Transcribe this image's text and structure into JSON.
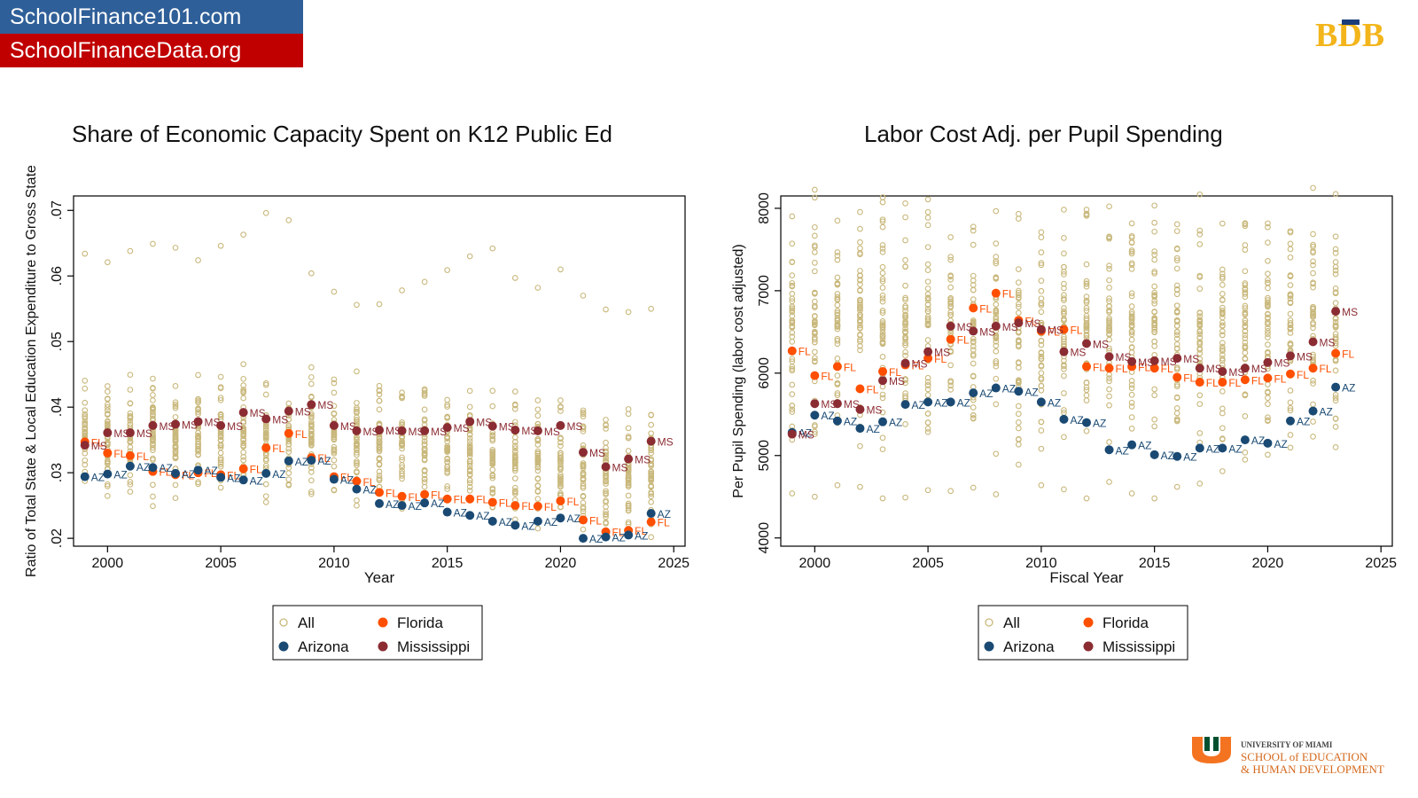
{
  "banner": {
    "line1": "SchoolFinance101.com",
    "line2": "SchoolFinanceData.org",
    "colors": {
      "line1_bg": "#2f5f98",
      "line2_bg": "#c00000"
    }
  },
  "logos": {
    "top_right": "BDB",
    "bottom_right": {
      "university": "UNIVERSITY OF MIAMI",
      "school_line1": "SCHOOL of EDUCATION",
      "school_line2": "& HUMAN DEVELOPMENT"
    }
  },
  "colors": {
    "all": "#c9b87c",
    "florida": "#ff4f00",
    "arizona": "#1a4a73",
    "mississippi": "#8b2c33"
  },
  "chart_data": [
    {
      "type": "scatter",
      "title": "Share of Economic Capacity Spent on K12 Public Ed",
      "xlabel": "Year",
      "ylabel": "Ratio of Total State & Local Education Expenditure to Gross State",
      "xlim": [
        1998.5,
        2025.5
      ],
      "ylim": [
        0.0188,
        0.0722
      ],
      "xticks": [
        2000,
        2005,
        2010,
        2015,
        2020,
        2025
      ],
      "xtick_labels": [
        "2000",
        "2005",
        "2010",
        "2015",
        "2020",
        "2025"
      ],
      "yticks": [
        0.02,
        0.03,
        0.04,
        0.05,
        0.06,
        0.07
      ],
      "ytick_labels": [
        ".02",
        ".03",
        ".04",
        ".05",
        ".06",
        ".07"
      ],
      "series": [
        {
          "name": "Florida",
          "label": "FL",
          "x": [
            1999,
            2000,
            2001,
            2002,
            2003,
            2004,
            2005,
            2006,
            2007,
            2008,
            2009,
            2010,
            2011,
            2012,
            2013,
            2014,
            2015,
            2016,
            2017,
            2018,
            2019,
            2020,
            2021,
            2022,
            2023,
            2024
          ],
          "y": [
            0.0347,
            0.033,
            0.0326,
            0.0302,
            0.0297,
            0.03,
            0.0297,
            0.0306,
            0.0338,
            0.036,
            0.0323,
            0.0294,
            0.0287,
            0.027,
            0.0264,
            0.0267,
            0.026,
            0.026,
            0.0255,
            0.025,
            0.0249,
            0.0257,
            0.0228,
            0.021,
            0.0212,
            0.0225
          ]
        },
        {
          "name": "Arizona",
          "label": "AZ",
          "x": [
            1999,
            2000,
            2001,
            2002,
            2003,
            2004,
            2005,
            2006,
            2007,
            2008,
            2009,
            2010,
            2011,
            2012,
            2013,
            2014,
            2015,
            2016,
            2017,
            2018,
            2019,
            2020,
            2021,
            2022,
            2023,
            2024
          ],
          "y": [
            0.0294,
            0.0298,
            0.031,
            0.0308,
            0.0299,
            0.0304,
            0.0293,
            0.0289,
            0.0299,
            0.0318,
            0.0319,
            0.029,
            0.0275,
            0.0253,
            0.025,
            0.0254,
            0.024,
            0.0235,
            0.0226,
            0.022,
            0.0226,
            0.0231,
            0.02,
            0.0202,
            0.0205,
            0.0238
          ]
        },
        {
          "name": "Mississippi",
          "label": "MS",
          "x": [
            1999,
            2000,
            2001,
            2002,
            2003,
            2004,
            2005,
            2006,
            2007,
            2008,
            2009,
            2010,
            2011,
            2012,
            2013,
            2014,
            2015,
            2016,
            2017,
            2018,
            2019,
            2020,
            2021,
            2022,
            2023,
            2024
          ],
          "y": [
            0.0342,
            0.0361,
            0.0361,
            0.0372,
            0.0374,
            0.0378,
            0.0372,
            0.0392,
            0.0382,
            0.0394,
            0.0404,
            0.0372,
            0.0364,
            0.0365,
            0.0364,
            0.0364,
            0.0369,
            0.0378,
            0.0371,
            0.0365,
            0.0364,
            0.0372,
            0.0331,
            0.0309,
            0.0321,
            0.0348
          ]
        }
      ],
      "all_states_note": "one hollow marker per state per year (All)",
      "all_outliers": {
        "x": [
          1999,
          2000,
          2001,
          2002,
          2003,
          2004,
          2005,
          2006,
          2007,
          2008,
          2009,
          2010,
          2011,
          2012,
          2013,
          2014,
          2015,
          2016,
          2017,
          2018,
          2019,
          2020,
          2021,
          2022,
          2023,
          2024
        ],
        "y": [
          0.0634,
          0.0621,
          0.0638,
          0.0649,
          0.0643,
          0.0624,
          0.0646,
          0.0663,
          0.0696,
          0.0685,
          0.0604,
          0.0576,
          0.0556,
          0.0557,
          0.0578,
          0.0591,
          0.0609,
          0.063,
          0.0642,
          0.0597,
          0.0582,
          0.061,
          0.057,
          0.0549,
          0.0545,
          0.055
        ]
      },
      "legend": {
        "position": "bottom",
        "entries": [
          "All",
          "Florida",
          "Arizona",
          "Mississippi"
        ]
      }
    },
    {
      "type": "scatter",
      "title": "Labor Cost Adj. per Pupil Spending",
      "xlabel": "Fiscal Year",
      "ylabel": "Per Pupil Spending (labor cost adjusted)",
      "xlim": [
        1998.5,
        2025.5
      ],
      "ylim": [
        3900,
        8150
      ],
      "xticks": [
        2000,
        2005,
        2010,
        2015,
        2020,
        2025
      ],
      "xtick_labels": [
        "2000",
        "2005",
        "2010",
        "2015",
        "2020",
        "2025"
      ],
      "yticks": [
        4000,
        5000,
        6000,
        7000,
        8000
      ],
      "ytick_labels": [
        "4000",
        "5000",
        "6000",
        "7000",
        "8000"
      ],
      "series": [
        {
          "name": "Florida",
          "label": "FL",
          "x": [
            1999,
            2000,
            2001,
            2002,
            2003,
            2004,
            2005,
            2006,
            2007,
            2008,
            2009,
            2010,
            2011,
            2012,
            2013,
            2014,
            2015,
            2016,
            2017,
            2018,
            2019,
            2020,
            2021,
            2022,
            2023
          ],
          "y": [
            6270,
            5970,
            6080,
            5810,
            6020,
            6100,
            6180,
            6410,
            6790,
            6970,
            6640,
            6510,
            6530,
            6080,
            6060,
            6080,
            6060,
            5950,
            5890,
            5890,
            5920,
            5940,
            5990,
            6060,
            6240
          ]
        },
        {
          "name": "Arizona",
          "label": "AZ",
          "x": [
            1999,
            2000,
            2001,
            2002,
            2003,
            2004,
            2005,
            2006,
            2007,
            2008,
            2009,
            2010,
            2011,
            2012,
            2013,
            2014,
            2015,
            2016,
            2017,
            2018,
            2019,
            2020,
            2021,
            2022,
            2023
          ],
          "y": [
            5280,
            5490,
            5420,
            5330,
            5410,
            5620,
            5650,
            5650,
            5760,
            5820,
            5780,
            5650,
            5440,
            5400,
            5070,
            5130,
            5010,
            4990,
            5090,
            5090,
            5190,
            5150,
            5420,
            5540,
            5830
          ]
        },
        {
          "name": "Mississippi",
          "label": "MS",
          "x": [
            1999,
            2000,
            2001,
            2002,
            2003,
            2004,
            2005,
            2006,
            2007,
            2008,
            2009,
            2010,
            2011,
            2012,
            2013,
            2014,
            2015,
            2016,
            2017,
            2018,
            2019,
            2020,
            2021,
            2022,
            2023
          ],
          "y": [
            5260,
            5630,
            5630,
            5560,
            5910,
            6120,
            6260,
            6570,
            6510,
            6570,
            6610,
            6530,
            6260,
            6360,
            6200,
            6140,
            6150,
            6180,
            6060,
            6020,
            6060,
            6130,
            6210,
            6380,
            6750
          ]
        }
      ],
      "all_states_note": "one hollow marker per state per year (All)",
      "all_outliers": {
        "x": [
          1999,
          2000,
          2001,
          2002,
          2003,
          2004,
          2005,
          2006,
          2007,
          2008,
          2009,
          2010,
          2011,
          2012,
          2013,
          2014,
          2015,
          2016,
          2017,
          2018,
          2019,
          2020,
          2021,
          2022,
          2023
        ],
        "y": [
          4540,
          4500,
          4640,
          4620,
          4480,
          4490,
          4580,
          4570,
          4610,
          4530,
          4890,
          4640,
          4590,
          4480,
          4680,
          4540,
          4480,
          4620,
          4660,
          4810,
          4950,
          5010,
          5250,
          5230,
          5450
        ]
      },
      "legend": {
        "position": "bottom",
        "entries": [
          "All",
          "Florida",
          "Arizona",
          "Mississippi"
        ]
      }
    }
  ]
}
